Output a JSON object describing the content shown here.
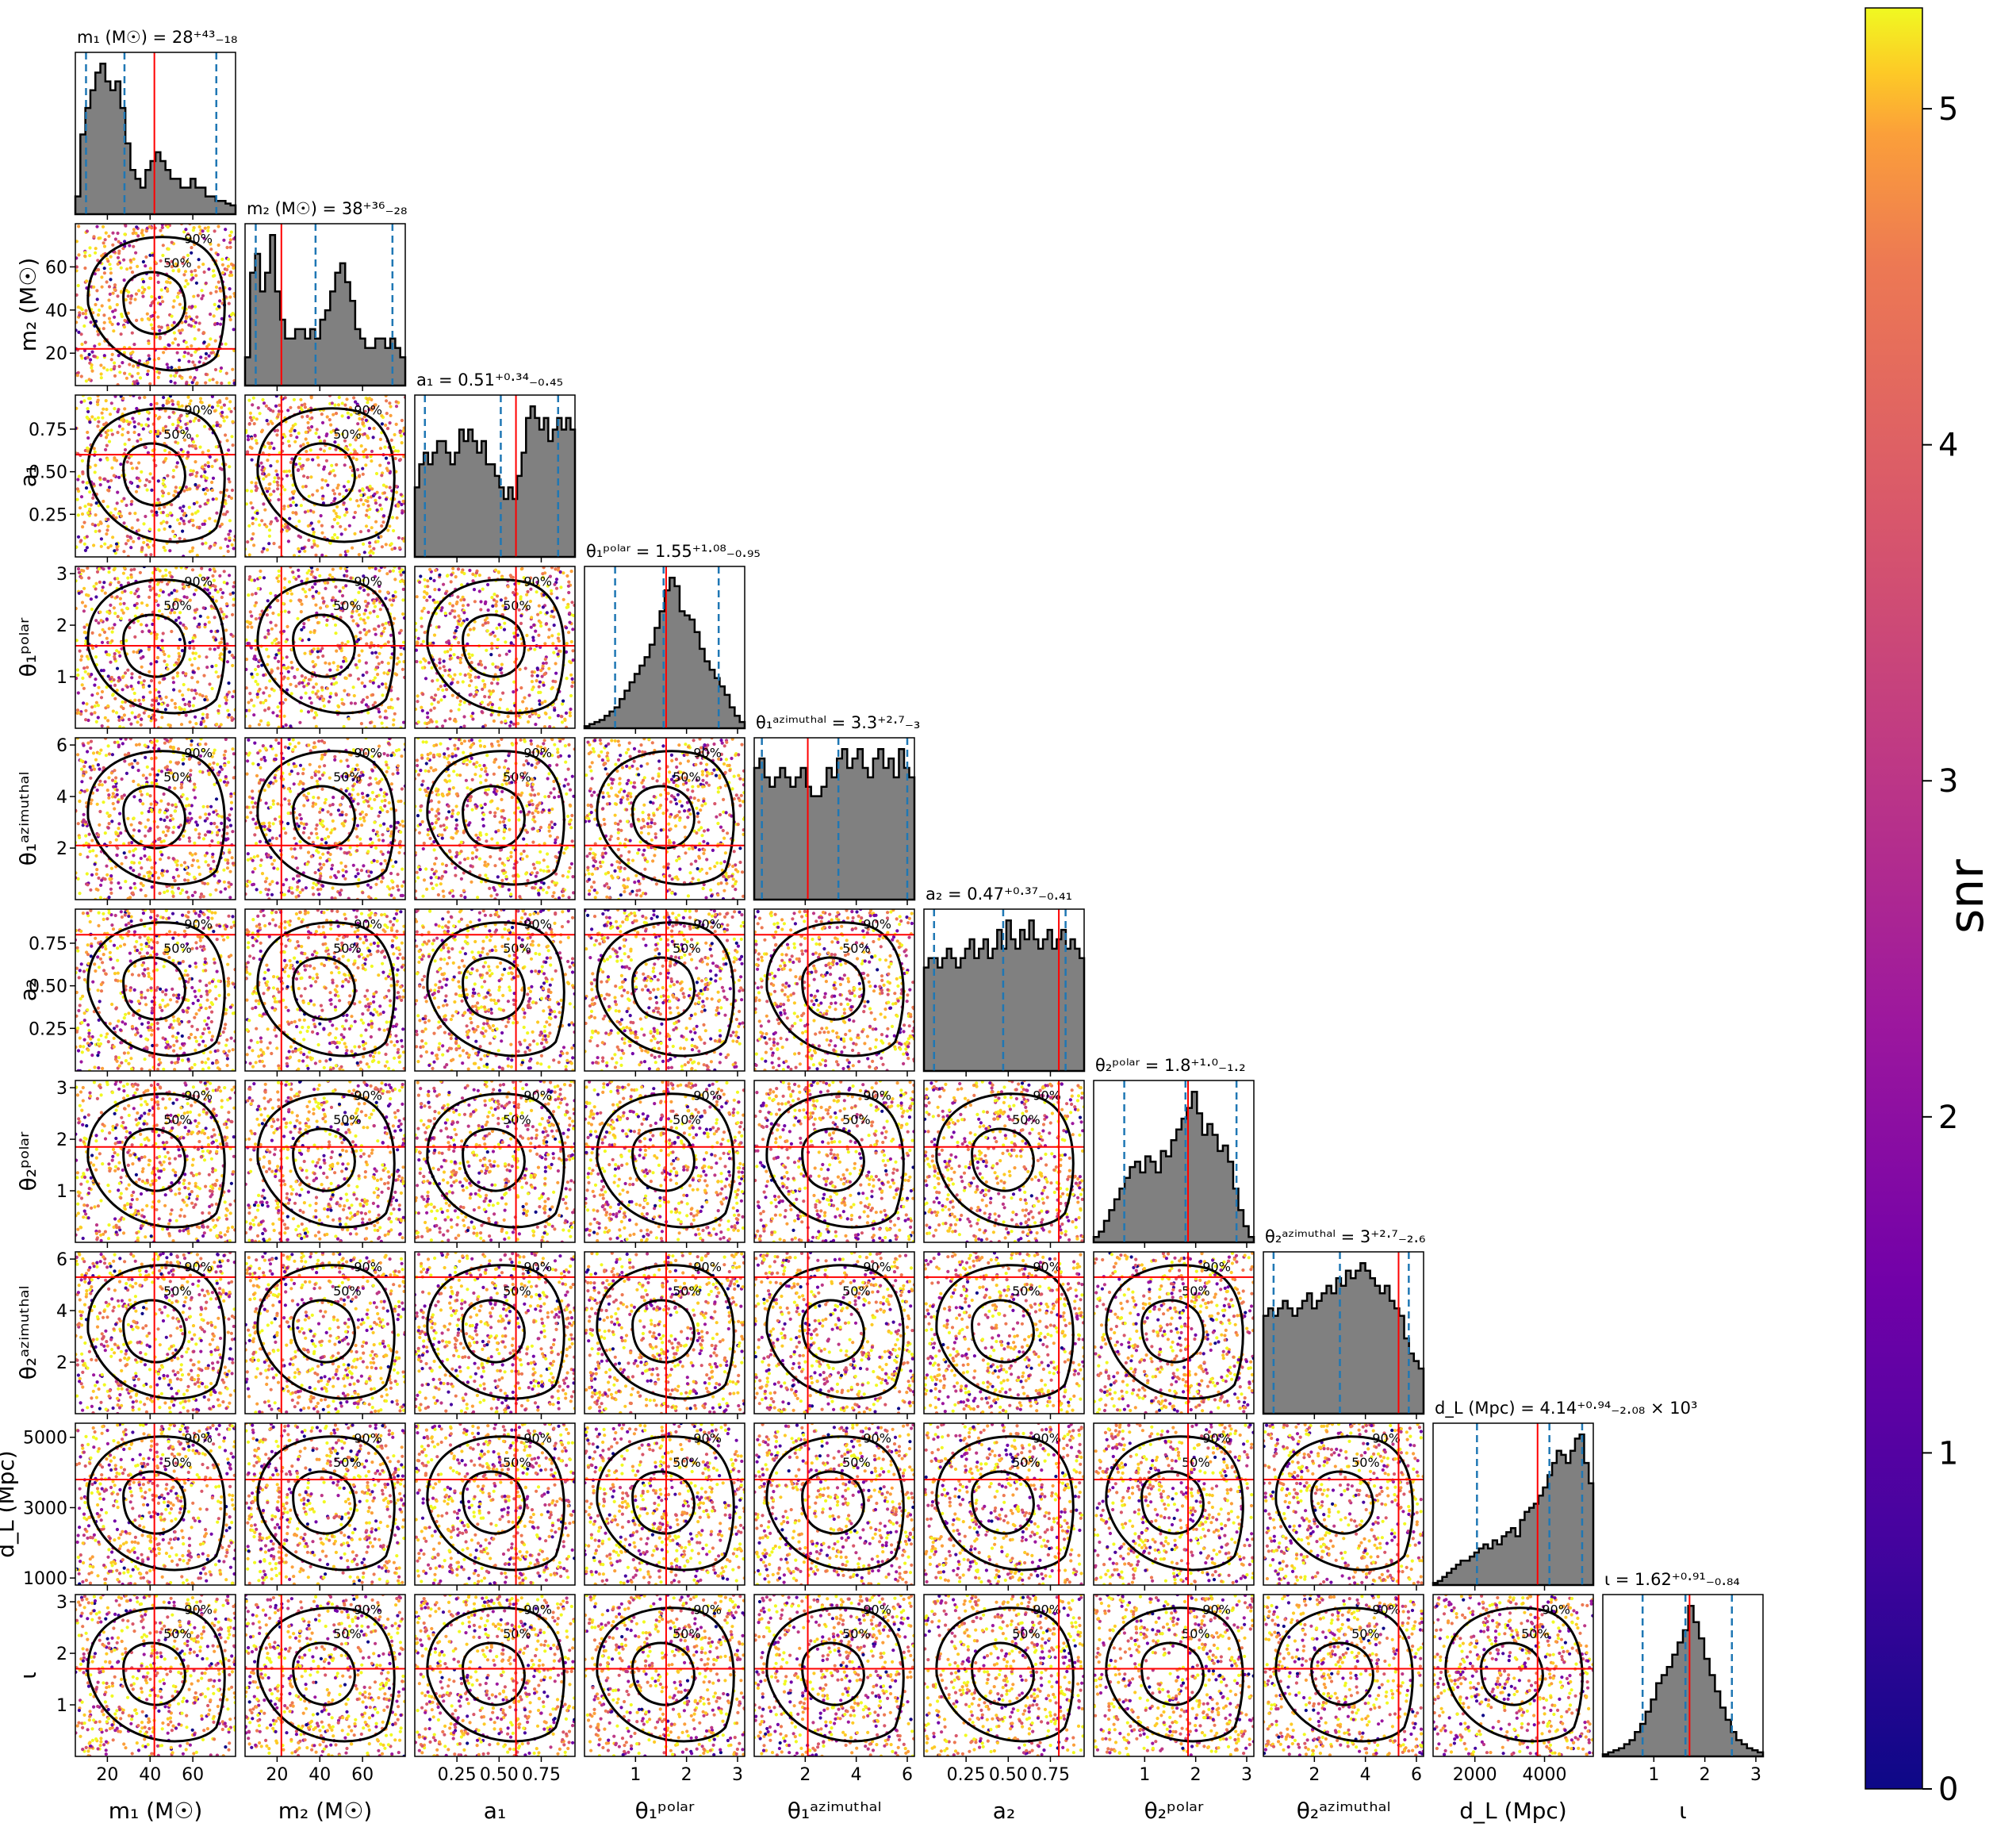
{
  "chart_data": {
    "type": "scatter",
    "subtype": "corner-plot",
    "colorbar": {
      "label": "snr",
      "range": [
        0,
        5.3
      ],
      "ticks": [
        0,
        1,
        2,
        3,
        4,
        5
      ],
      "tick_labels": [
        "0",
        "1",
        "2",
        "3",
        "4",
        "5"
      ],
      "colormap": "plasma"
    },
    "params": [
      {
        "name": "m1",
        "label": "m₁ (M☉)",
        "title": "m₁ (M☉) = 28⁺⁴³₋₁₈",
        "range": [
          5,
          80
        ],
        "median": 28,
        "lo": 10,
        "hi": 71,
        "truth": 42,
        "ticks": [
          20,
          40,
          60
        ],
        "tick_labels": [
          "20",
          "40",
          "60"
        ]
      },
      {
        "name": "m2",
        "label": "m₂ (M☉)",
        "title": "m₂ (M☉) = 38⁺³⁶₋₂₈",
        "range": [
          5,
          80
        ],
        "median": 38,
        "lo": 10,
        "hi": 74,
        "truth": 22,
        "ticks": [
          20,
          40,
          60
        ],
        "tick_labels": [
          "20",
          "40",
          "60"
        ]
      },
      {
        "name": "a1",
        "label": "a₁",
        "title": "a₁ = 0.51⁺⁰·³⁴₋₀.₄₅",
        "range": [
          0,
          0.95
        ],
        "median": 0.51,
        "lo": 0.06,
        "hi": 0.85,
        "truth": 0.6,
        "ticks": [
          0.25,
          0.5,
          0.75
        ],
        "tick_labels": [
          "0.25",
          "0.50",
          "0.75"
        ]
      },
      {
        "name": "theta1_polar",
        "label": "θ₁ᵖᵒˡᵃʳ",
        "title": "θ₁ᵖᵒˡᵃʳ = 1.55⁺¹·⁰⁸₋₀.₉₅",
        "range": [
          0,
          3.14
        ],
        "median": 1.55,
        "lo": 0.6,
        "hi": 2.63,
        "truth": 1.6,
        "ticks": [
          1,
          2,
          3
        ],
        "tick_labels": [
          "1",
          "2",
          "3"
        ]
      },
      {
        "name": "theta1_azimuthal",
        "label": "θ₁ᵃᶻⁱᵐᵘᵗʰᵃˡ",
        "title": "θ₁ᵃᶻⁱᵐᵘᵗʰᵃˡ = 3.3⁺²·⁷₋₃",
        "range": [
          0,
          6.28
        ],
        "median": 3.3,
        "lo": 0.3,
        "hi": 6.0,
        "truth": 2.1,
        "ticks": [
          2,
          4,
          6
        ],
        "tick_labels": [
          "2",
          "4",
          "6"
        ]
      },
      {
        "name": "a2",
        "label": "a₂",
        "title": "a₂ = 0.47⁺⁰·³⁷₋₀.₄₁",
        "range": [
          0,
          0.95
        ],
        "median": 0.47,
        "lo": 0.06,
        "hi": 0.84,
        "truth": 0.8,
        "ticks": [
          0.25,
          0.5,
          0.75
        ],
        "tick_labels": [
          "0.25",
          "0.50",
          "0.75"
        ]
      },
      {
        "name": "theta2_polar",
        "label": "θ₂ᵖᵒˡᵃʳ",
        "title": "θ₂ᵖᵒˡᵃʳ = 1.8⁺¹·⁰₋₁.₂",
        "range": [
          0,
          3.14
        ],
        "median": 1.8,
        "lo": 0.6,
        "hi": 2.8,
        "truth": 1.85,
        "ticks": [
          1,
          2,
          3
        ],
        "tick_labels": [
          "1",
          "2",
          "3"
        ]
      },
      {
        "name": "theta2_azimuthal",
        "label": "θ₂ᵃᶻⁱᵐᵘᵗʰᵃˡ",
        "title": "θ₂ᵃᶻⁱᵐᵘᵗʰᵃˡ = 3⁺²·⁷₋₂.₆",
        "range": [
          0,
          6.28
        ],
        "median": 3.0,
        "lo": 0.4,
        "hi": 5.7,
        "truth": 5.3,
        "ticks": [
          2,
          4,
          6
        ],
        "tick_labels": [
          "2",
          "4",
          "6"
        ]
      },
      {
        "name": "dL",
        "label": "d_L (Mpc)",
        "title": "d_L (Mpc) = 4.14⁺⁰·⁹⁴₋₂.₀₈ × 10³",
        "range": [
          800,
          5400
        ],
        "median": 4140,
        "lo": 2060,
        "hi": 5080,
        "truth": 3800,
        "ticks": [
          1000,
          3000,
          5000
        ],
        "tick_labels": [
          "1000",
          "3000",
          "5000"
        ],
        "xticks": [
          2000,
          4000
        ],
        "xtick_labels": [
          "2000",
          "4000"
        ]
      },
      {
        "name": "iota",
        "label": "ι",
        "title": "ι = 1.62⁺⁰·⁹¹₋₀.₈₄",
        "range": [
          0,
          3.14
        ],
        "median": 1.62,
        "lo": 0.78,
        "hi": 2.53,
        "truth": 1.7,
        "ticks": [
          1,
          2,
          3
        ],
        "tick_labels": [
          "1",
          "2",
          "3"
        ]
      }
    ],
    "histograms": {
      "m1": [
        2,
        9,
        12,
        14,
        16,
        17,
        15,
        14,
        15,
        12,
        8,
        5,
        4,
        3,
        5,
        6,
        7,
        6,
        5,
        4,
        4,
        3,
        3,
        4,
        3,
        3,
        2,
        2,
        1.5,
        1.5,
        1.2,
        1
      ],
      "m2": [
        3,
        12,
        14,
        10,
        12,
        16,
        10,
        7,
        5,
        5,
        6,
        6,
        5,
        6,
        5,
        7,
        8,
        10,
        12,
        13,
        11,
        9,
        6,
        5,
        4,
        4,
        5,
        5,
        4,
        5,
        4,
        3
      ],
      "a1": [
        6,
        8,
        9,
        8,
        9,
        10,
        10,
        9,
        8,
        9,
        11,
        10,
        11,
        10,
        9,
        10,
        8,
        8,
        7,
        6,
        5,
        6,
        5,
        7,
        9,
        12,
        13,
        12,
        11,
        12,
        10,
        11,
        12,
        11,
        12,
        11
      ],
      "theta1_polar": [
        0.5,
        1,
        1.5,
        2,
        3,
        4,
        5,
        7,
        9,
        11,
        13,
        15,
        17,
        20,
        24,
        28,
        33,
        36,
        34,
        28,
        27,
        26,
        23,
        19,
        16,
        14,
        12,
        10,
        8,
        5,
        3,
        1.5
      ],
      "theta1_azimuthal": [
        14,
        15,
        13,
        12,
        13,
        14,
        13,
        12,
        13,
        14,
        12,
        11,
        11,
        12,
        14,
        13,
        15,
        16,
        14,
        15,
        16,
        14,
        13,
        15,
        16,
        14,
        15,
        13,
        16,
        14,
        13
      ],
      "a2": [
        11,
        12,
        12,
        11,
        12,
        13,
        12,
        11,
        12,
        13,
        14,
        12,
        13,
        14,
        12,
        13,
        15,
        13,
        16,
        14,
        13,
        15,
        14,
        16,
        14,
        13,
        14,
        15,
        13,
        14,
        15,
        13,
        14,
        13,
        12
      ],
      "theta2_polar": [
        1,
        2,
        4,
        6,
        8,
        10,
        12,
        14,
        15,
        13,
        16,
        15,
        13,
        17,
        16,
        19,
        21,
        23,
        25,
        28,
        24,
        20,
        22,
        20,
        17,
        18,
        15,
        10,
        6,
        3,
        1
      ],
      "theta2_azimuthal": [
        13,
        14,
        13,
        14,
        15,
        14,
        13,
        14,
        15,
        16,
        14,
        15,
        16,
        17,
        16,
        18,
        17,
        19,
        18,
        19,
        20,
        19,
        18,
        17,
        16,
        17,
        15,
        14,
        13,
        10,
        8,
        7,
        6
      ],
      "dL": [
        0.5,
        1,
        2,
        3,
        4,
        5,
        6,
        6,
        7,
        8,
        9,
        10,
        9,
        11,
        10,
        12,
        13,
        14,
        12,
        16,
        18,
        19,
        20,
        22,
        24,
        27,
        30,
        33,
        32,
        30,
        33,
        36,
        37,
        30,
        25
      ],
      "iota": [
        0.5,
        1,
        1.5,
        2,
        3,
        4,
        6,
        8,
        11,
        14,
        18,
        20,
        22,
        25,
        28,
        31,
        37,
        33,
        29,
        24,
        20,
        16,
        12,
        9,
        6,
        4,
        3,
        2,
        1.5,
        1
      ]
    },
    "contour_levels": [
      "50%",
      "90%"
    ]
  }
}
